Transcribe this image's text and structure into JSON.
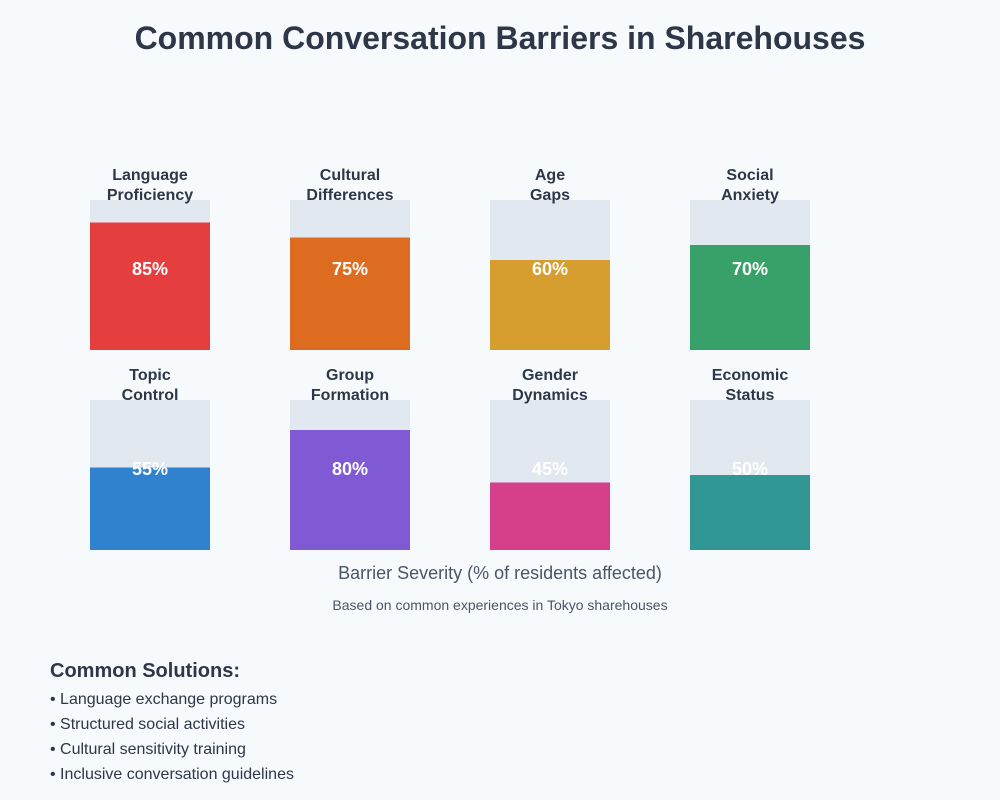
{
  "chart_data": {
    "type": "bar",
    "title": "Common Conversation Barriers in Sharehouses",
    "xlabel": "Barrier Severity (% of residents affected)",
    "subtitle": "Based on common experiences in Tokyo sharehouses",
    "ylim": [
      0,
      100
    ],
    "unit": "%",
    "categories": [
      [
        "Language",
        "Proficiency"
      ],
      [
        "Cultural",
        "Differences"
      ],
      [
        "Age",
        "Gaps"
      ],
      [
        "Social",
        "Anxiety"
      ],
      [
        "Topic",
        "Control"
      ],
      [
        "Group",
        "Formation"
      ],
      [
        "Gender",
        "Dynamics"
      ],
      [
        "Economic",
        "Status"
      ]
    ],
    "values": [
      85,
      75,
      60,
      70,
      55,
      80,
      45,
      50
    ],
    "colors": [
      "#e53e3e",
      "#dd6b20",
      "#d69e2e",
      "#38a169",
      "#3182ce",
      "#805ad5",
      "#d53f8c",
      "#319795"
    ],
    "track_color": "#e2e8f0"
  },
  "solutions": {
    "heading": "Common Solutions:",
    "items": [
      "• Language exchange programs",
      "• Structured social activities",
      "• Cultural sensitivity training",
      "• Inclusive conversation guidelines"
    ]
  }
}
